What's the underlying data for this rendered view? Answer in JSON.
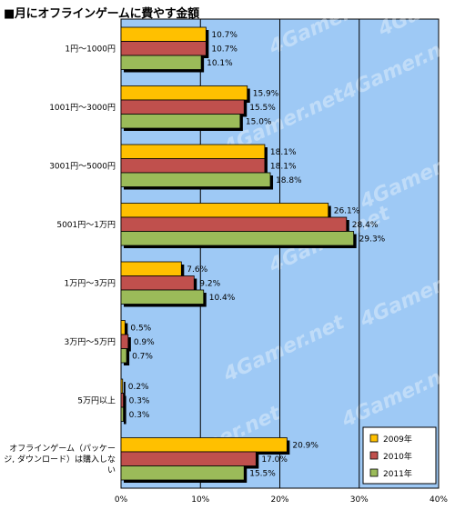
{
  "title": "■月にオフラインゲームに費やす金額",
  "watermark_text": "4Gamer.net",
  "colors": {
    "plot_bg": "#9ec9f5",
    "grid": "#000000",
    "shadow": "#000000"
  },
  "chart_data": {
    "type": "bar",
    "orientation": "horizontal",
    "xlim": [
      0,
      40
    ],
    "x_ticks": [
      "0%",
      "10%",
      "20%",
      "30%",
      "40%"
    ],
    "grid": true,
    "legend_position": "bottom-right",
    "categories": [
      "1円〜1000円",
      "1001円〜3000円",
      "3001円〜5000円",
      "5001円〜1万円",
      "1万円〜3万円",
      "3万円〜5万円",
      "5万円以上",
      "オフラインゲーム（パッケージ, ダウンロード）は購入しない"
    ],
    "category_lines": [
      [
        "1円〜1000円"
      ],
      [
        "1001円〜3000円"
      ],
      [
        "3001円〜5000円"
      ],
      [
        "5001円〜1万円"
      ],
      [
        "1万円〜3万円"
      ],
      [
        "3万円〜5万円"
      ],
      [
        "5万円以上"
      ],
      [
        "オフラインゲーム（パッケー",
        "ジ, ダウンロード）は購入しな",
        "い"
      ]
    ],
    "series": [
      {
        "name": "2009年",
        "color": "#ffc000",
        "values": [
          10.7,
          15.9,
          18.1,
          26.1,
          7.6,
          0.5,
          0.2,
          20.9
        ],
        "labels": [
          "10.7%",
          "15.9%",
          "18.1%",
          "26.1%",
          "7.6%",
          "0.5%",
          "0.2%",
          "20.9%"
        ]
      },
      {
        "name": "2010年",
        "color": "#c0504d",
        "values": [
          10.7,
          15.5,
          18.1,
          28.4,
          9.2,
          0.9,
          0.3,
          17.0
        ],
        "labels": [
          "10.7%",
          "15.5%",
          "18.1%",
          "28.4%",
          "9.2%",
          "0.9%",
          "0.3%",
          "17.0%"
        ]
      },
      {
        "name": "2011年",
        "color": "#9bbb59",
        "values": [
          10.1,
          15.0,
          18.8,
          29.3,
          10.4,
          0.7,
          0.3,
          15.5
        ],
        "labels": [
          "10.1%",
          "15.0%",
          "18.8%",
          "29.3%",
          "10.4%",
          "0.7%",
          "0.3%",
          "15.5%"
        ]
      }
    ]
  }
}
